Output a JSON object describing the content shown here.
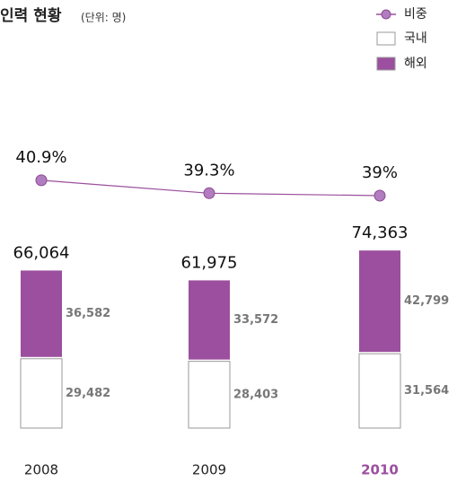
{
  "chart_data": {
    "type": "bar",
    "title": "인력 현황",
    "subtitle": "(단위: 명)",
    "categories": [
      "2008",
      "2009",
      "2010"
    ],
    "series": [
      {
        "name": "국내",
        "color": "#ffffff",
        "values": [
          29482,
          28403,
          31564
        ],
        "value_labels": [
          "29,482",
          "28,403",
          "31,564"
        ]
      },
      {
        "name": "해외",
        "color": "#9b4f9e",
        "values": [
          36582,
          33572,
          42799
        ],
        "value_labels": [
          "36,582",
          "33,572",
          "42,799"
        ]
      },
      {
        "name": "비중",
        "color": "#9b4f9e",
        "type": "line",
        "axis": "y2",
        "values": [
          40.9,
          39.3,
          39
        ],
        "value_labels": [
          "40.9%",
          "39.3%",
          "39%"
        ]
      }
    ],
    "totals": [
      66064,
      61975,
      74363
    ],
    "total_labels": [
      "66,064",
      "61,975",
      "74,363"
    ],
    "highlight_category": 2,
    "ylim": [
      0,
      80000
    ],
    "y2lim": [
      36,
      44
    ]
  }
}
